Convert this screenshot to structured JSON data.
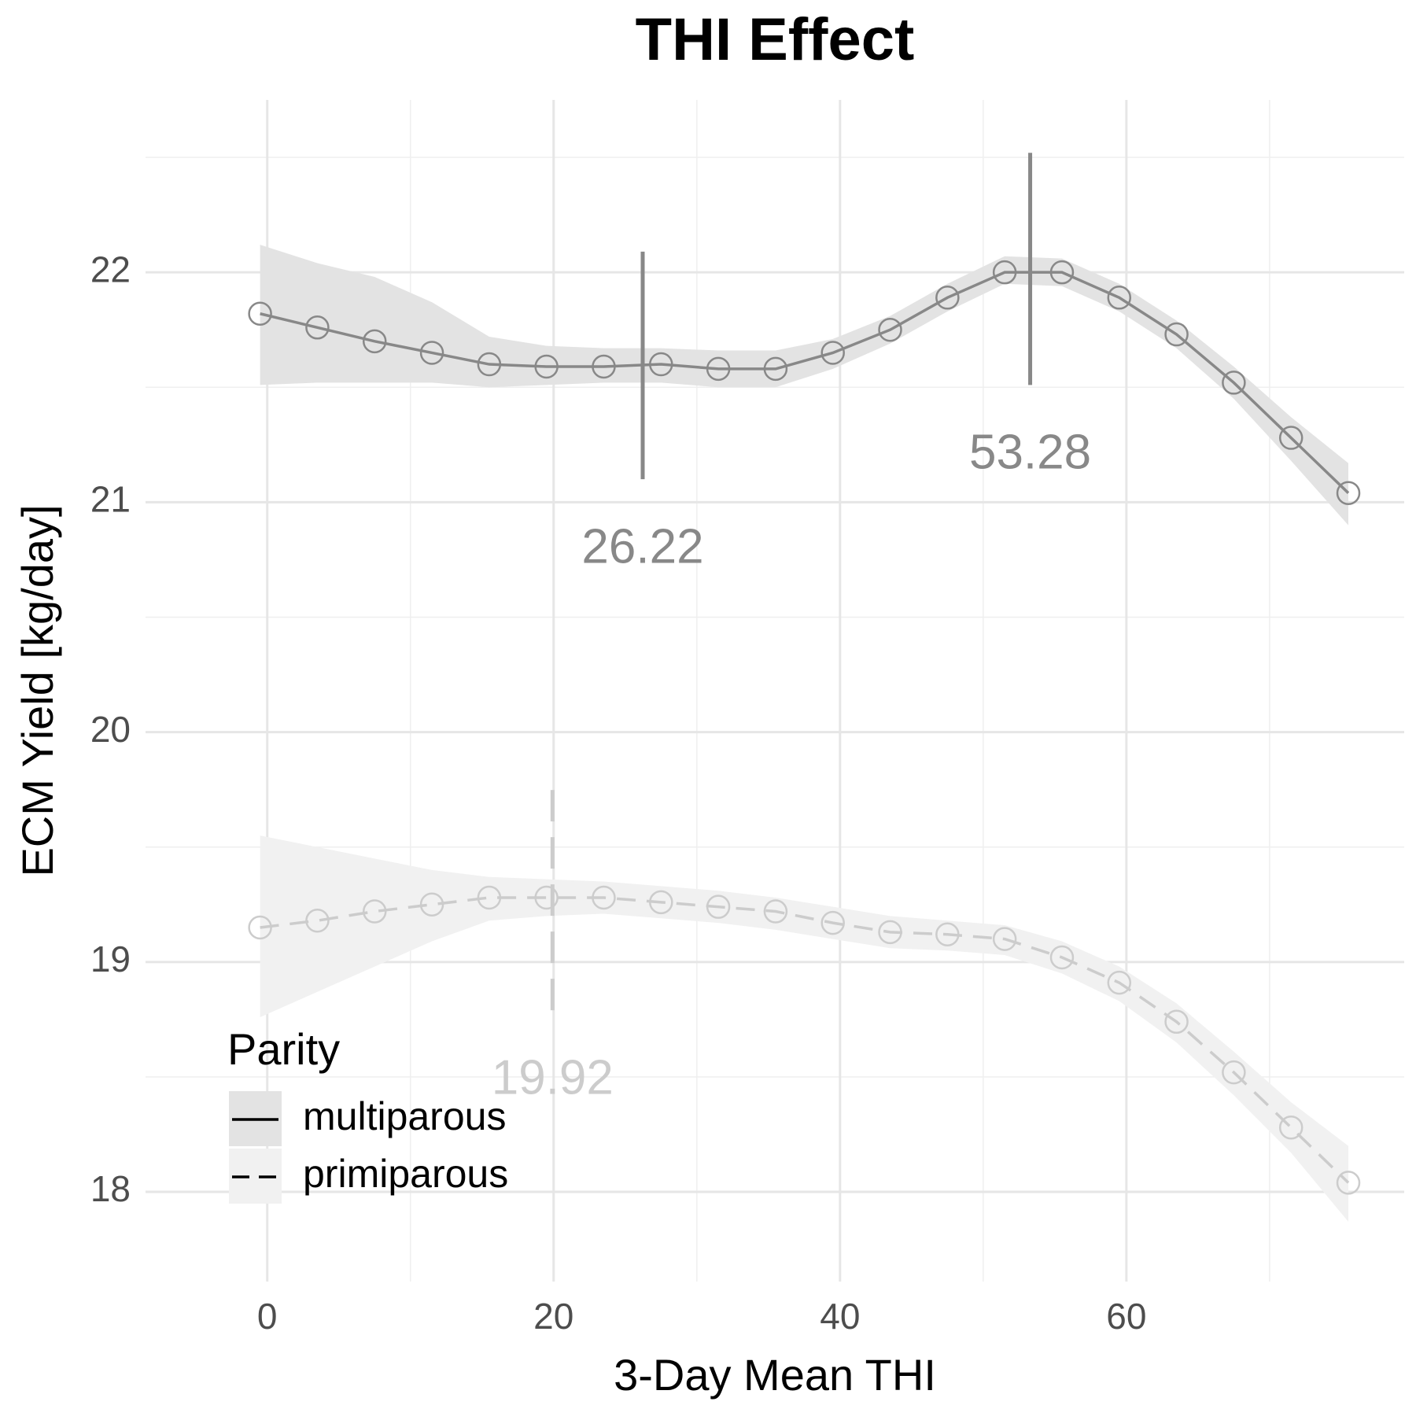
{
  "chart_data": {
    "type": "line",
    "title": "THI Effect",
    "x_label": "3-Day Mean THI",
    "y_label": "ECM Yield [kg/day]",
    "xlim": [
      -8.5,
      79.4
    ],
    "ylim": [
      17.61,
      22.75
    ],
    "xticks": [
      0,
      20,
      40,
      60
    ],
    "yticks": [
      18,
      19,
      20,
      21,
      22
    ],
    "minor_xticks": [
      10,
      30,
      50,
      70
    ],
    "minor_yticks": [
      18.5,
      19.5,
      20.5,
      21.5,
      22.5
    ],
    "grid": true,
    "legend_title": "Parity",
    "legend_position": "bottom-left",
    "series": [
      {
        "name": "multiparous",
        "color": "#888888",
        "ribbon_color": "#e3e3e3",
        "linetype": "solid",
        "x": [
          -0.5,
          3.5,
          7.5,
          11.5,
          15.5,
          19.5,
          23.5,
          27.5,
          31.5,
          35.5,
          39.5,
          43.5,
          47.5,
          51.5,
          55.5,
          59.5,
          63.5,
          67.5,
          71.5,
          75.5
        ],
        "values": [
          21.82,
          21.76,
          21.7,
          21.65,
          21.6,
          21.59,
          21.59,
          21.6,
          21.58,
          21.58,
          21.65,
          21.75,
          21.89,
          22.0,
          22.0,
          21.89,
          21.73,
          21.52,
          21.28,
          21.04
        ],
        "upper": [
          22.12,
          22.04,
          21.98,
          21.87,
          21.72,
          21.68,
          21.67,
          21.67,
          21.66,
          21.66,
          21.71,
          21.81,
          21.95,
          22.07,
          22.06,
          21.95,
          21.79,
          21.59,
          21.37,
          21.17
        ],
        "lower": [
          21.51,
          21.52,
          21.52,
          21.52,
          21.5,
          21.51,
          21.52,
          21.52,
          21.5,
          21.5,
          21.58,
          21.69,
          21.83,
          21.95,
          21.94,
          21.83,
          21.67,
          21.45,
          21.18,
          20.9
        ],
        "breakpoints": [
          {
            "x": 26.22,
            "ymin": 21.1,
            "ymax": 22.09
          },
          {
            "x": 53.28,
            "ymin": 21.51,
            "ymax": 22.52
          }
        ]
      },
      {
        "name": "primiparous",
        "color": "#cccccc",
        "ribbon_color": "#f1f1f1",
        "linetype": "dashed",
        "x": [
          -0.5,
          3.5,
          7.5,
          11.5,
          15.5,
          19.5,
          23.5,
          27.5,
          31.5,
          35.5,
          39.5,
          43.5,
          47.5,
          51.5,
          55.5,
          59.5,
          63.5,
          67.5,
          71.5,
          75.5
        ],
        "values": [
          19.15,
          19.18,
          19.22,
          19.25,
          19.28,
          19.28,
          19.28,
          19.26,
          19.24,
          19.22,
          19.17,
          19.13,
          19.12,
          19.1,
          19.02,
          18.91,
          18.74,
          18.52,
          18.28,
          18.04
        ],
        "upper": [
          19.55,
          19.5,
          19.45,
          19.4,
          19.37,
          19.36,
          19.35,
          19.33,
          19.31,
          19.28,
          19.24,
          19.2,
          19.18,
          19.16,
          19.09,
          18.98,
          18.82,
          18.61,
          18.39,
          18.2
        ],
        "lower": [
          18.76,
          18.87,
          18.98,
          19.09,
          19.18,
          19.2,
          19.21,
          19.19,
          19.17,
          19.14,
          19.1,
          19.06,
          19.05,
          19.03,
          18.95,
          18.83,
          18.65,
          18.42,
          18.17,
          17.87
        ],
        "breakpoints": [
          {
            "x": 19.92,
            "ymin": 18.79,
            "ymax": 19.78
          }
        ]
      }
    ]
  }
}
